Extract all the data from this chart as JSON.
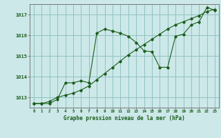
{
  "title": "Graphe pression niveau de la mer (hPa)",
  "background_color": "#cce8e8",
  "line_color": "#1a5c1a",
  "grid_color": "#88bbbb",
  "x_ticks": [
    0,
    1,
    2,
    3,
    4,
    5,
    6,
    7,
    8,
    9,
    10,
    11,
    12,
    13,
    14,
    15,
    16,
    17,
    18,
    19,
    20,
    21,
    22,
    23
  ],
  "ylim": [
    1012.5,
    1017.5
  ],
  "yticks": [
    1013,
    1014,
    1015,
    1016,
    1017
  ],
  "series1_x": [
    0,
    1,
    2,
    3,
    4,
    5,
    6,
    7,
    8,
    9,
    10,
    11,
    12,
    13,
    14,
    15,
    16,
    17,
    18,
    19,
    20,
    21,
    22,
    23
  ],
  "series1_y": [
    1012.7,
    1012.7,
    1012.7,
    1012.9,
    1013.7,
    1013.7,
    1013.8,
    1013.7,
    1016.1,
    1016.3,
    1016.2,
    1016.1,
    1015.95,
    1015.65,
    1015.25,
    1015.2,
    1014.45,
    1014.45,
    1015.95,
    1016.05,
    1016.5,
    1016.65,
    1017.35,
    1017.2
  ],
  "series2_x": [
    0,
    1,
    2,
    3,
    4,
    5,
    6,
    7,
    8,
    9,
    10,
    11,
    12,
    13,
    14,
    15,
    16,
    17,
    18,
    19,
    20,
    21,
    22,
    23
  ],
  "series2_y": [
    1012.7,
    1012.7,
    1012.8,
    1013.0,
    1013.1,
    1013.2,
    1013.35,
    1013.55,
    1013.85,
    1014.15,
    1014.45,
    1014.75,
    1015.05,
    1015.3,
    1015.55,
    1015.8,
    1016.05,
    1016.3,
    1016.5,
    1016.65,
    1016.8,
    1016.95,
    1017.15,
    1017.25
  ]
}
